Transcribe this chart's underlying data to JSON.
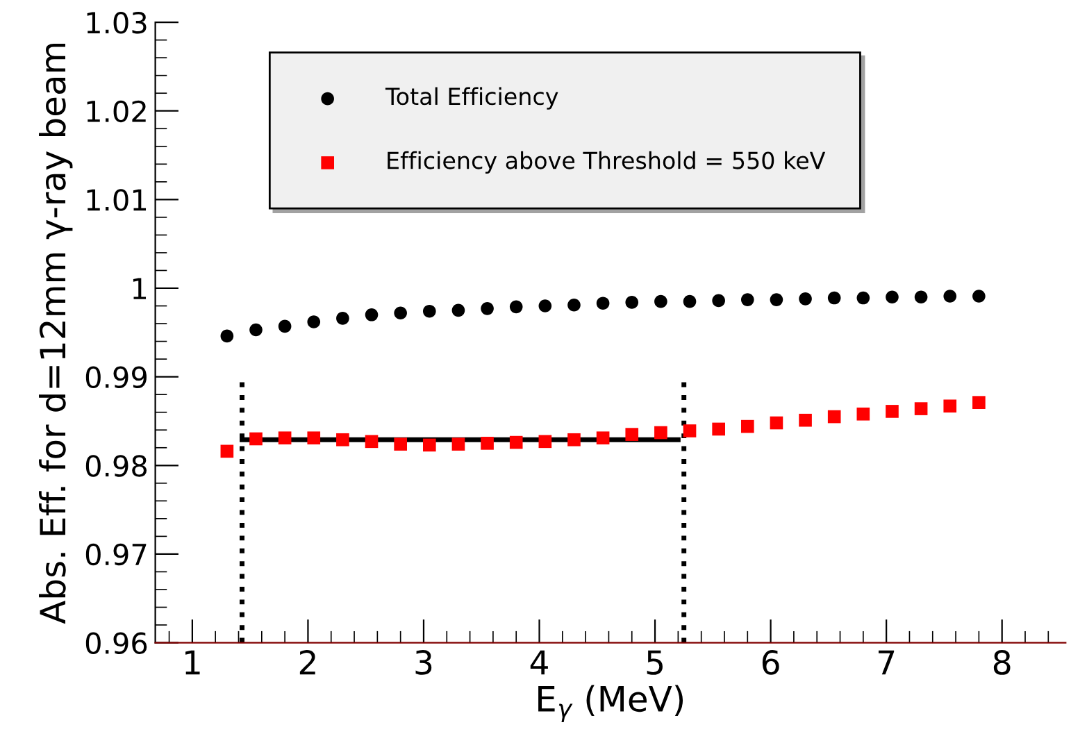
{
  "chart_data": {
    "type": "scatter",
    "xlabel": "E$_{γ}$ (MeV)",
    "ylabel": "Abs. Eff. for d=12mm γ-ray beam",
    "x": [
      1.3,
      1.55,
      1.8,
      2.05,
      2.3,
      2.55,
      2.8,
      3.05,
      3.3,
      3.55,
      3.8,
      4.05,
      4.3,
      4.55,
      4.8,
      5.05,
      5.3,
      5.55,
      5.8,
      6.05,
      6.3,
      6.55,
      6.8,
      7.05,
      7.3,
      7.55,
      7.8
    ],
    "series": [
      {
        "name": "Total Efficiency",
        "color": "#000000",
        "marker": "circle",
        "values": [
          0.9946,
          0.9953,
          0.9957,
          0.9962,
          0.9966,
          0.997,
          0.9972,
          0.9974,
          0.9975,
          0.9977,
          0.9979,
          0.998,
          0.9981,
          0.9983,
          0.9984,
          0.9985,
          0.9985,
          0.9986,
          0.9987,
          0.9987,
          0.9988,
          0.9989,
          0.9989,
          0.999,
          0.999,
          0.9991,
          0.9991
        ]
      },
      {
        "name": "Efficiency above Threshold = 550 keV",
        "color": "#ff0000",
        "marker": "square",
        "values": [
          0.9816,
          0.983,
          0.9831,
          0.9831,
          0.9829,
          0.9827,
          0.9824,
          0.9823,
          0.9824,
          0.9825,
          0.9826,
          0.9827,
          0.9829,
          0.9831,
          0.9835,
          0.9837,
          0.9839,
          0.9841,
          0.9844,
          0.9848,
          0.9851,
          0.9855,
          0.9858,
          0.9861,
          0.9864,
          0.9867,
          0.9871
        ]
      },
      {
        "type": "line",
        "color": "#000000",
        "line_style": "solid",
        "x": [
          1.43,
          5.2
        ],
        "values": [
          0.9829,
          0.9829
        ]
      },
      {
        "type": "line",
        "color": "#000000",
        "line_style": "dotted",
        "x": [
          1.43,
          1.43
        ],
        "values": [
          0.96,
          0.99
        ]
      },
      {
        "type": "line",
        "color": "#000000",
        "line_style": "dotted",
        "x": [
          5.25,
          5.25
        ],
        "values": [
          0.96,
          0.99
        ]
      }
    ],
    "xlim": [
      0.68,
      8.55
    ],
    "xticks": [
      1,
      2,
      3,
      4,
      5,
      6,
      7,
      8
    ],
    "ylim": [
      0.96,
      1.03
    ],
    "yticks": [
      0.96,
      0.97,
      0.98,
      0.99,
      1,
      1.01,
      1.02,
      1.03
    ],
    "legend": "top",
    "grid": false
  }
}
